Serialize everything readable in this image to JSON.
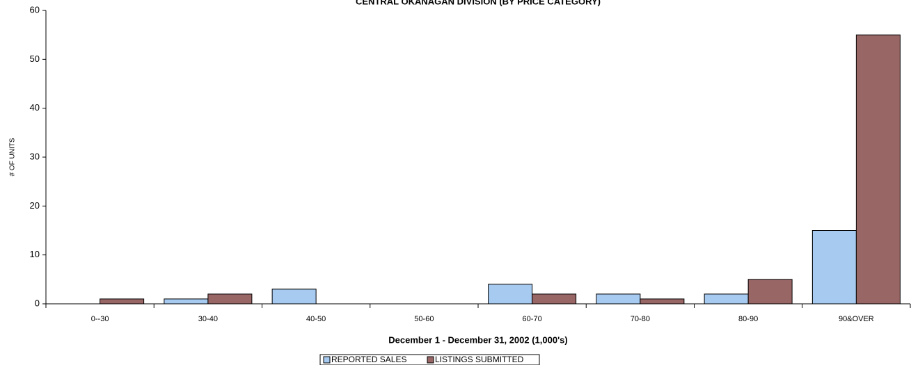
{
  "chart_data": {
    "type": "bar",
    "title": "CENTRAL OKANAGAN DIVISION (BY PRICE CATEGORY)",
    "x_label": "December 1 - December 31, 2002 (1,000's)",
    "y_label": "# OF UNITS",
    "categories": [
      "0--30",
      "30-40",
      "40-50",
      "50-60",
      "60-70",
      "70-80",
      "80-90",
      "90&OVER"
    ],
    "series": [
      {
        "name": "REPORTED SALES",
        "color": "#a6caf0",
        "values": [
          0,
          1,
          3,
          0,
          4,
          2,
          2,
          15
        ]
      },
      {
        "name": "LISTINGS SUBMITTED",
        "color": "#996666",
        "values": [
          1,
          2,
          0,
          0,
          2,
          1,
          5,
          55
        ]
      }
    ],
    "ylim": [
      0,
      60
    ],
    "yticks": [
      0,
      10,
      20,
      30,
      40,
      50,
      60
    ],
    "grid": false
  }
}
